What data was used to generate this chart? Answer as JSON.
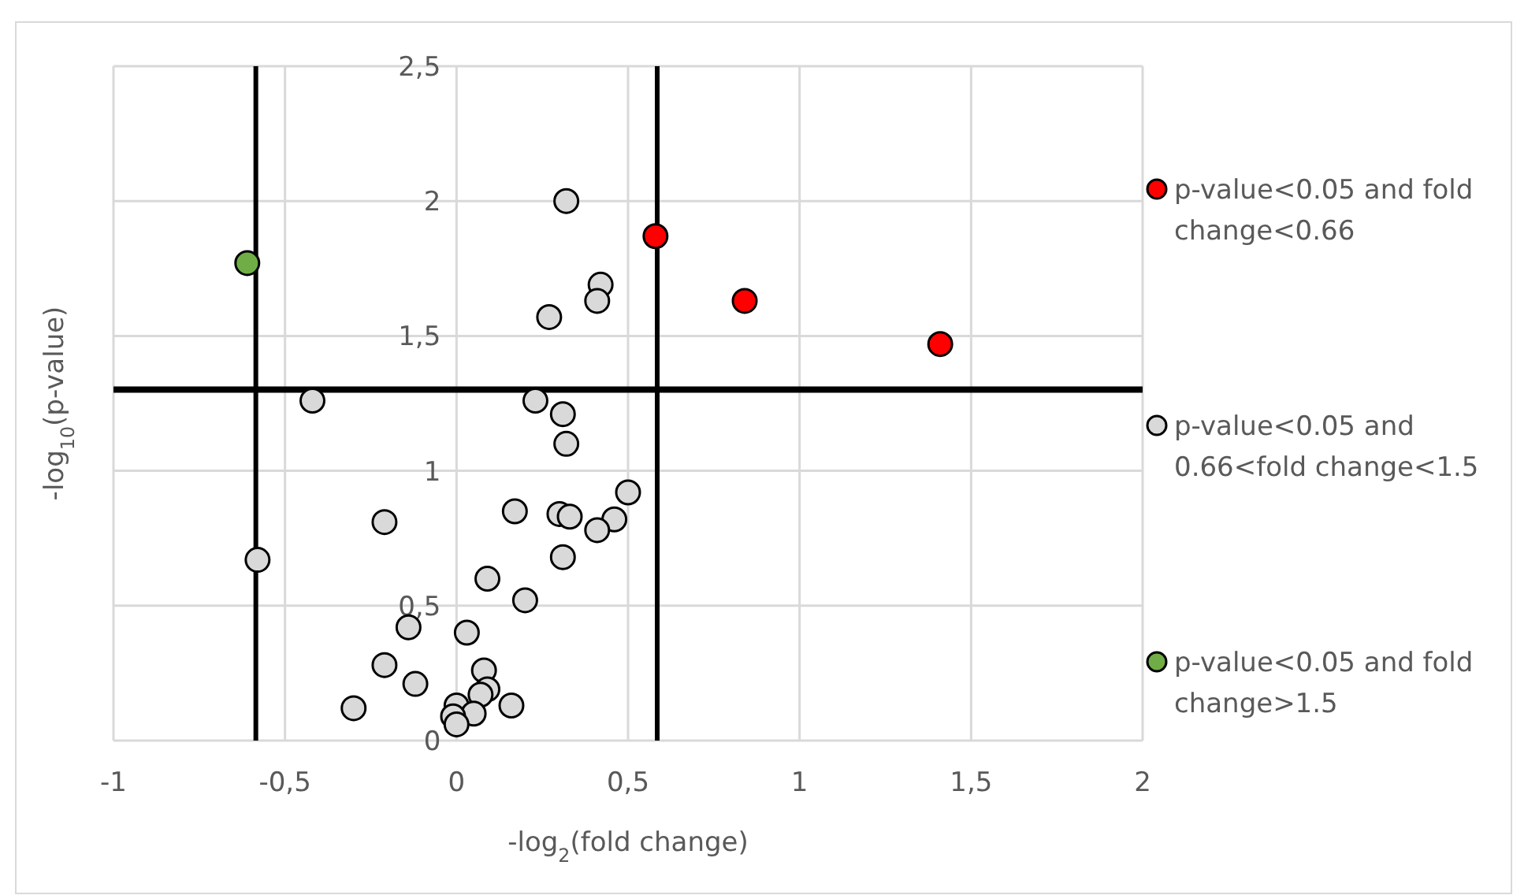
{
  "chart_data": {
    "type": "scatter",
    "xlabel": "-log$_{2}$(fold change)",
    "ylabel": "-log$_{10}$(p-value)",
    "xlim": [
      -1,
      2
    ],
    "xticks": [
      {
        "value": -1,
        "label": "-1"
      },
      {
        "value": -0.5,
        "label": "-0,5"
      },
      0,
      {
        "value": 0.5,
        "label": "0,5"
      },
      1,
      {
        "value": 1.5,
        "label": "1,5"
      },
      2
    ],
    "ylim": [
      0,
      2.5
    ],
    "yticks": [
      0,
      {
        "value": 0.5,
        "label": "0,5"
      },
      1,
      {
        "value": 1.5,
        "label": "1,5"
      },
      2,
      {
        "value": 2.5,
        "label": "2,5"
      }
    ],
    "grid": true,
    "legend": "right",
    "marker": "circle",
    "ref_lines": [
      {
        "axis": "x",
        "value": -0.585,
        "color": "#000000"
      },
      {
        "axis": "x",
        "value": 0.585,
        "color": "#000000"
      },
      {
        "axis": "y",
        "value": 1.301,
        "color": "#000000"
      }
    ],
    "series": [
      {
        "name": "p-value<0.05 and fold change<0.66",
        "color": "#ff0000",
        "x": [
          0.58,
          0.84,
          1.41
        ],
        "values": [
          1.87,
          1.63,
          1.47
        ]
      },
      {
        "name": "p-value<0.05 and 0.66<fold change<1.5",
        "color": "#d9d9d9",
        "x": [
          0.32,
          0.42,
          0.41,
          0.27,
          -0.42,
          0.23,
          0.31,
          0.32,
          0.5,
          0.17,
          0.3,
          0.33,
          0.46,
          0.41,
          -0.21,
          -0.58,
          0.31,
          0.09,
          0.2,
          -0.14,
          0.03,
          -0.21,
          -0.12,
          0.08,
          0.09,
          0.07,
          0.16,
          -0.3,
          0,
          0.05,
          -0.01,
          0
        ],
        "values": [
          2.0,
          1.69,
          1.63,
          1.57,
          1.26,
          1.26,
          1.21,
          1.1,
          0.92,
          0.85,
          0.84,
          0.83,
          0.82,
          0.78,
          0.81,
          0.67,
          0.68,
          0.6,
          0.52,
          0.42,
          0.4,
          0.28,
          0.21,
          0.26,
          0.19,
          0.17,
          0.13,
          0.12,
          0.13,
          0.1,
          0.09,
          0.06
        ]
      },
      {
        "name": "p-value<0.05 and fold change>1.5",
        "color": "#70ad47",
        "x": [
          -0.61
        ],
        "values": [
          1.77
        ]
      }
    ]
  }
}
